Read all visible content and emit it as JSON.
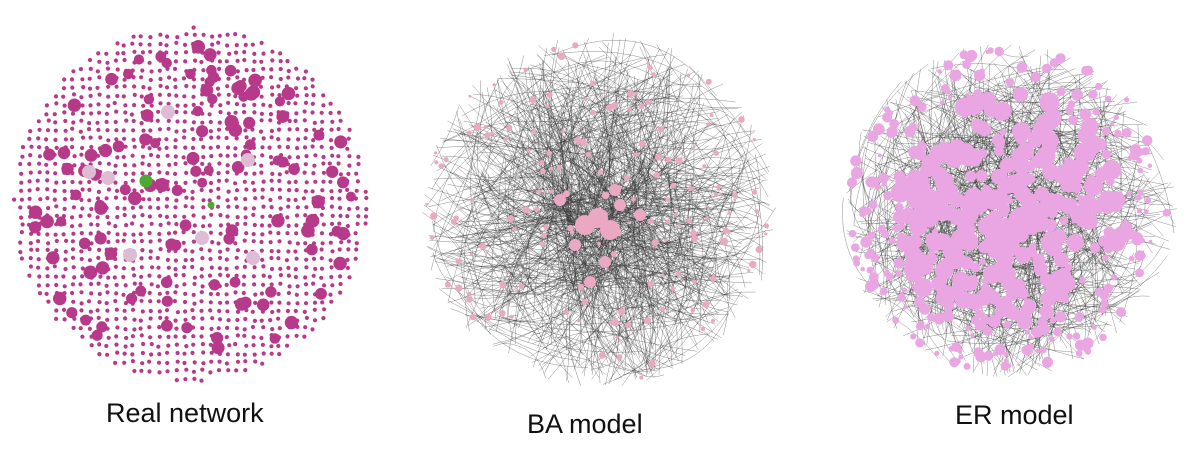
{
  "panels": [
    {
      "id": "real",
      "caption": "Real network",
      "style": "dots",
      "colors": {
        "node": "#b7398a",
        "light": "#ddbcd4",
        "accent": "#4cab2e"
      }
    },
    {
      "id": "ba",
      "caption": "BA model",
      "style": "scale-free",
      "colors": {
        "edge": "#333333",
        "node": "#eaa8c3"
      }
    },
    {
      "id": "er",
      "caption": "ER model",
      "style": "random",
      "colors": {
        "edge": "#333333",
        "node": "#eaa6e3"
      }
    }
  ]
}
